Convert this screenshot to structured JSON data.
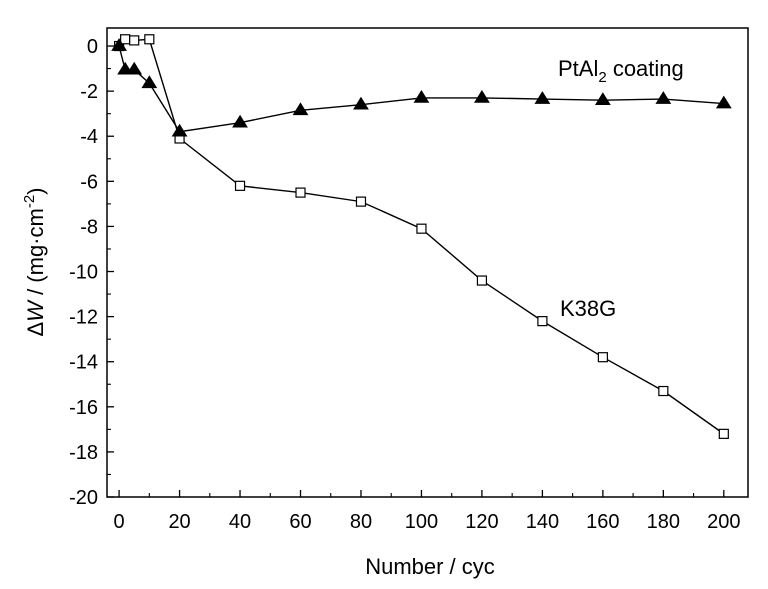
{
  "chart_data": {
    "type": "line",
    "title": "",
    "xlabel": "Number / cyc",
    "ylabel": {
      "delta": "Δ",
      "var": "W",
      "slash": " / (mg·cm",
      "sup": "-2",
      "close": ")"
    },
    "xlim": [
      -4,
      208
    ],
    "ylim": [
      -20,
      0.8
    ],
    "xticks": [
      0,
      20,
      40,
      60,
      80,
      100,
      120,
      140,
      160,
      180,
      200
    ],
    "yticks": [
      0,
      -2,
      -4,
      -6,
      -8,
      -10,
      -12,
      -14,
      -16,
      -18,
      -20
    ],
    "grid": false,
    "series": [
      {
        "name": "K38G",
        "marker": "square-open",
        "color": "#000000",
        "x": [
          0,
          2,
          5,
          10,
          20,
          40,
          60,
          80,
          100,
          120,
          140,
          160,
          180,
          200
        ],
        "y": [
          0,
          0.3,
          0.25,
          0.3,
          -4.1,
          -6.2,
          -6.5,
          -6.9,
          -8.1,
          -10.4,
          -12.2,
          -13.8,
          -15.3,
          -17.2
        ]
      },
      {
        "name": "PtAl2 coating",
        "marker": "triangle-filled",
        "color": "#000000",
        "x": [
          0,
          2,
          5,
          10,
          20,
          40,
          60,
          80,
          100,
          120,
          140,
          160,
          180,
          200
        ],
        "y": [
          0,
          -1.05,
          -1.05,
          -1.65,
          -3.8,
          -3.4,
          -2.85,
          -2.6,
          -2.3,
          -2.3,
          -2.35,
          -2.4,
          -2.35,
          -2.55
        ]
      }
    ],
    "annotations": {
      "coating": {
        "main": "PtAl",
        "sub": "2",
        "rest": " coating"
      },
      "substrate": "K38G"
    }
  }
}
